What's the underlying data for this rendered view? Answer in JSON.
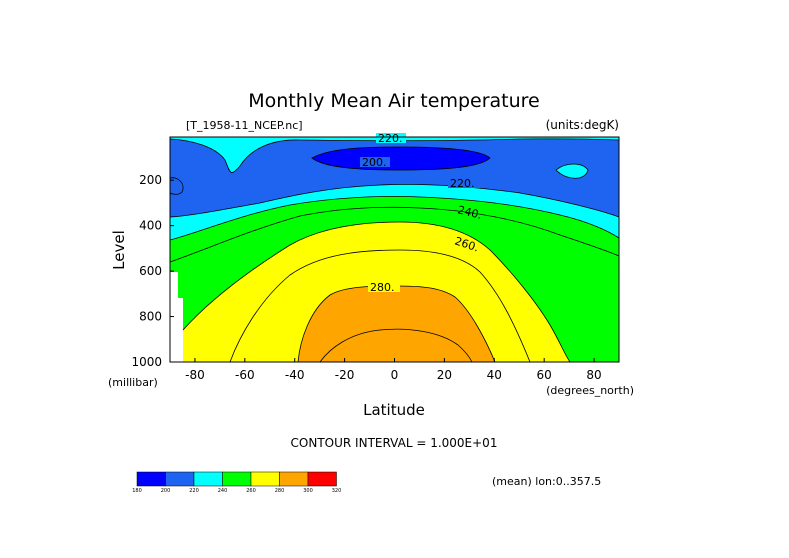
{
  "chart_data": {
    "type": "heatmap",
    "title": "Monthly Mean Air temperature",
    "file_label": "[T_1958-11_NCEP.nc]",
    "units_label": "(units:degK)",
    "xlabel": "Latitude",
    "ylabel": "Level",
    "x_units": "(degrees_north)",
    "y_units": "(millibar)",
    "xlim": [
      -90,
      90
    ],
    "ylim": [
      1000,
      10
    ],
    "x_ticks": [
      "-80",
      "-60",
      "-40",
      "-20",
      "0",
      "20",
      "40",
      "60",
      "80"
    ],
    "y_ticks": [
      "200",
      "400",
      "600",
      "800",
      "1000"
    ],
    "contour_interval": "CONTOUR INTERVAL = 1.000E+01",
    "mean_note": "(mean) lon:0..357.5",
    "contour_labels": [
      "220.",
      "200.",
      "220.",
      "240.",
      "260.",
      "280."
    ],
    "colorbar": {
      "levels": [
        "180",
        "200",
        "220",
        "240",
        "260",
        "280",
        "300",
        "320"
      ],
      "colors": [
        "#0000ff",
        "#1e64f0",
        "#00ffff",
        "#00ff00",
        "#ffff00",
        "#ffa500",
        "#ff0000"
      ]
    },
    "bands_note": "lowest pressure level 1000 mbar; warm core 280-300 K near equator below 700 mbar",
    "grid": false
  }
}
